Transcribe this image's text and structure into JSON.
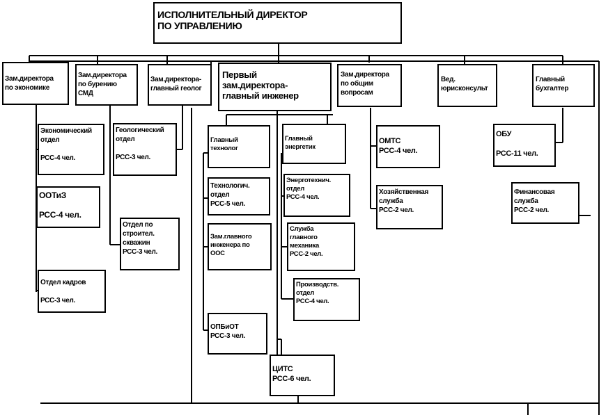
{
  "top": "ИСПОЛНИТЕЛЬНЫЙ  ДИРЕКТОР\nПО УПРАВЛЕНИЮ",
  "deputies": {
    "economy": "Зам.директора\nпо экономике",
    "drilling": "Зам.директора\nпо бурению\nСМД",
    "geology": "Зам.директора-\nглавный геолог",
    "first": "Первый\nзам.директора-\nглавный инженер",
    "general": "Зам.директора\nпо общим\nвопросам",
    "legal": "Вед.\nюрисконсульт",
    "accountant": "Главный\nбухгалтер"
  },
  "units": {
    "econ_dept": "Экономический\nотдел\n\nРСС-4 чел.",
    "ootiz": "ООТиЗ\n\nРСС-4 чел.",
    "hr": "Отдел кадров\n\nРСС-3 чел.",
    "geo_dept": "Геологический\nотдел\n\nРСС-3 чел.",
    "constr": "Отдел по\nстроител.\nскважин\nРСС-3 чел.",
    "chief_tech": "Главный\nтехнолог",
    "tech_dept": "Технологич.\nотдел\nРСС-5 чел.",
    "deputy_ecology": "Зам.главного\nинженера по\nООС",
    "opbot": "ОПБиОТ\nРСС-3 чел.",
    "chief_energy": "Главный\nэнергетик",
    "energy_dept": "Энерготехнич.\nотдел\nРСС-4 чел.",
    "mech_service": "Служба\nглавного\nмеханика\nРСС-2 чел.",
    "prod_dept": "Производств.\nотдел\nРСС-4 чел.",
    "cits": "ЦИТС\nРСС-6 чел.",
    "omts": "ОМТС\nРСС-4 чел.",
    "household": "Хозяйственная\nслужба\nРСС-2 чел.",
    "obu": "ОБУ\n\nРСС-11 чел.",
    "finance": "Финансовая\nслужба\nРСС-2 чел."
  }
}
